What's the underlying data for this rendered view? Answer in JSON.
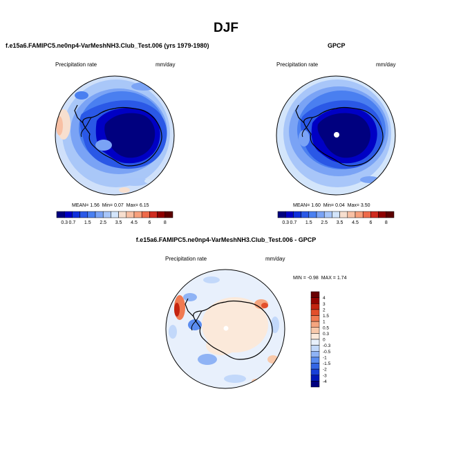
{
  "figure": {
    "season_title": "DJF",
    "panels": [
      {
        "title": "f.e15a6.FAMIPC5.ne0np4-VarMeshNH3.Club_Test.006 (yrs 1979-1980)",
        "left_label": "Precipitation rate",
        "right_label": "mm/day",
        "stats": {
          "mean_label": "MEAN=",
          "mean": "1.56",
          "min_label": "Min=",
          "min": "0.07",
          "max_label": "Max=",
          "max": "6.15"
        }
      },
      {
        "title": "GPCP",
        "left_label": "Precipitation rate",
        "right_label": "mm/day",
        "stats": {
          "mean_label": "MEAN=",
          "mean": "1.60",
          "min_label": "Min=",
          "min": "0.04",
          "max_label": "Max=",
          "max": "3.50"
        }
      },
      {
        "title": "f.e15a6.FAMIPC5.ne0np4-VarMeshNH3.Club_Test.006 - GPCP",
        "left_label": "Precipitation rate",
        "right_label": "mm/day",
        "stats": {
          "min_label": "MIN =",
          "min": "-0.98",
          "max_label": "MAX =",
          "max": "1.74"
        }
      }
    ]
  },
  "chart_data": [
    {
      "type": "heatmap",
      "projection": "south polar stereographic",
      "title": "f.e15a6.FAMIPC5.ne0np4-VarMeshNH3.Club_Test.006 (yrs 1979-1980)",
      "variable": "Precipitation rate",
      "units": "mm/day",
      "colorbar": {
        "levels": [
          "0.3",
          "0.7",
          "1",
          "1.5",
          "2",
          "2.5",
          "3",
          "3.5",
          "4",
          "4.5",
          "5",
          "6",
          "7",
          "8"
        ],
        "tick_labels": [
          "0.3",
          "0.7",
          "1.5",
          "2.5",
          "3.5",
          "4.5",
          "6",
          "8"
        ],
        "colors": [
          "#00007f",
          "#0000c4",
          "#1030dc",
          "#2a58e6",
          "#4a7ff0",
          "#7aa3f5",
          "#a8c6f9",
          "#d3e5fb",
          "#f7dfcf",
          "#f8c0a4",
          "#f7a07c",
          "#ee6a4a",
          "#cf2c20",
          "#8e0000",
          "#5c0000"
        ]
      },
      "mean": 1.56,
      "min": 0.07,
      "max": 6.15
    },
    {
      "type": "heatmap",
      "projection": "south polar stereographic",
      "title": "GPCP",
      "variable": "Precipitation rate",
      "units": "mm/day",
      "colorbar": {
        "levels": [
          "0.3",
          "0.7",
          "1",
          "1.5",
          "2",
          "2.5",
          "3",
          "3.5",
          "4",
          "4.5",
          "5",
          "6",
          "7",
          "8"
        ],
        "tick_labels": [
          "0.3",
          "0.7",
          "1.5",
          "2.5",
          "3.5",
          "4.5",
          "6",
          "8"
        ],
        "colors": [
          "#00007f",
          "#0000c4",
          "#1030dc",
          "#2a58e6",
          "#4a7ff0",
          "#7aa3f5",
          "#a8c6f9",
          "#d3e5fb",
          "#f7dfcf",
          "#f8c0a4",
          "#f7a07c",
          "#ee6a4a",
          "#cf2c20",
          "#8e0000",
          "#5c0000"
        ]
      },
      "mean": 1.6,
      "min": 0.04,
      "max": 3.5
    },
    {
      "type": "heatmap",
      "projection": "south polar stereographic",
      "title": "f.e15a6.FAMIPC5.ne0np4-VarMeshNH3.Club_Test.006 - GPCP",
      "variable": "Precipitation rate",
      "units": "mm/day",
      "colorbar": {
        "levels": [
          "-4",
          "-3",
          "-2",
          "-1.5",
          "-1",
          "-0.5",
          "-0.3",
          "0",
          "0.3",
          "0.5",
          "1",
          "1.5",
          "2",
          "3",
          "4"
        ],
        "colors": [
          "#00007f",
          "#0018b8",
          "#1840d8",
          "#3466e4",
          "#5a8cf0",
          "#8fb3f5",
          "#c2d8fa",
          "#e8f0fc",
          "#fbe9da",
          "#f8c9ab",
          "#f5a57f",
          "#f07a52",
          "#e24f2c",
          "#c42410",
          "#930400",
          "#6a0000"
        ]
      },
      "min": -0.98,
      "max": 1.74
    }
  ]
}
